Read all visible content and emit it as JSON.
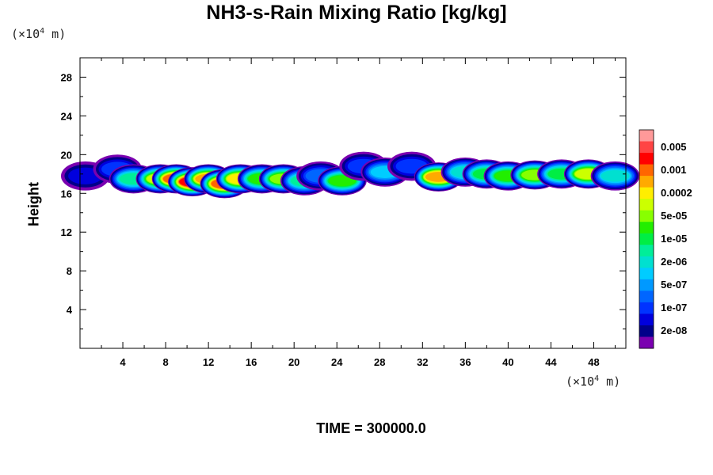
{
  "chart_data": {
    "type": "heatmap",
    "title": "NH3-s-Rain Mixing Ratio [kg/kg]",
    "xlabel": "",
    "ylabel": "Height",
    "x_unit_prefix": "(×10",
    "x_unit_exp": "4",
    "x_unit_suffix": " m)",
    "y_unit_prefix": "(×10",
    "y_unit_exp": "4",
    "y_unit_suffix": " m)",
    "xlim": [
      0,
      51
    ],
    "ylim": [
      0,
      30
    ],
    "x_ticks": [
      4,
      8,
      12,
      16,
      20,
      24,
      28,
      32,
      36,
      40,
      44,
      48
    ],
    "y_ticks": [
      4,
      8,
      12,
      16,
      20,
      24,
      28
    ],
    "colorbar": {
      "labels": [
        "0.005",
        "0.001",
        "0.0002",
        "5e-05",
        "1e-05",
        "2e-06",
        "5e-07",
        "1e-07",
        "2e-08"
      ],
      "colors": [
        "#ff9999",
        "#ff4444",
        "#ff0000",
        "#ff6600",
        "#ffaa00",
        "#ffee00",
        "#ccff00",
        "#88ff00",
        "#22ee00",
        "#00ee44",
        "#00ee99",
        "#00e0d0",
        "#00ccff",
        "#0099ff",
        "#0066ff",
        "#0033ff",
        "#0000dd",
        "#00008a",
        "#7a00b0"
      ]
    },
    "cells": [
      {
        "x": 0.5,
        "y": 17.8,
        "level": 2
      },
      {
        "x": 3.5,
        "y": 18.5,
        "level": 3
      },
      {
        "x": 5,
        "y": 17.5,
        "level": 8
      },
      {
        "x": 7.5,
        "y": 17.5,
        "level": 12
      },
      {
        "x": 9,
        "y": 17.5,
        "level": 15
      },
      {
        "x": 10.5,
        "y": 17.2,
        "level": 16
      },
      {
        "x": 12,
        "y": 17.5,
        "level": 14
      },
      {
        "x": 13.5,
        "y": 17.0,
        "level": 15
      },
      {
        "x": 15,
        "y": 17.5,
        "level": 13
      },
      {
        "x": 17,
        "y": 17.5,
        "level": 10
      },
      {
        "x": 19,
        "y": 17.5,
        "level": 11
      },
      {
        "x": 21,
        "y": 17.3,
        "level": 8
      },
      {
        "x": 22.5,
        "y": 17.8,
        "level": 4
      },
      {
        "x": 24.5,
        "y": 17.3,
        "level": 10
      },
      {
        "x": 26.5,
        "y": 18.8,
        "level": 3
      },
      {
        "x": 28.5,
        "y": 18.2,
        "level": 6
      },
      {
        "x": 31,
        "y": 18.8,
        "level": 3
      },
      {
        "x": 33.5,
        "y": 17.7,
        "level": 14
      },
      {
        "x": 36,
        "y": 18.2,
        "level": 7
      },
      {
        "x": 38,
        "y": 18.0,
        "level": 9
      },
      {
        "x": 40,
        "y": 17.8,
        "level": 10
      },
      {
        "x": 42.5,
        "y": 17.9,
        "level": 11
      },
      {
        "x": 45,
        "y": 18.0,
        "level": 9
      },
      {
        "x": 47.5,
        "y": 18.0,
        "level": 12
      },
      {
        "x": 50,
        "y": 17.8,
        "level": 7
      }
    ]
  },
  "timestamp": "TIME = 300000.0"
}
